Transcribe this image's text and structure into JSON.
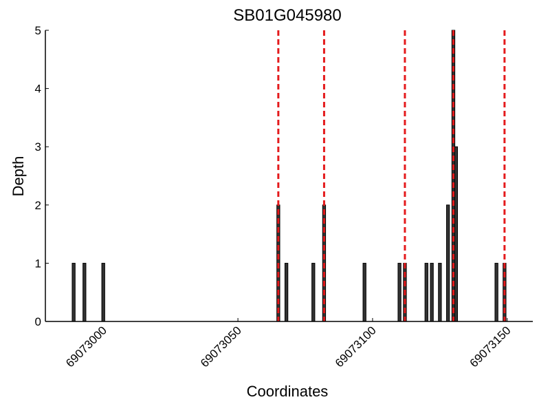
{
  "chart_data": {
    "type": "bar",
    "title": "SB01G045980",
    "xlabel": "Coordinates",
    "ylabel": "Depth",
    "x": [
      69072989,
      69072993,
      69073000,
      69073065,
      69073068,
      69073078,
      69073082,
      69073097,
      69073110,
      69073112,
      69073120,
      69073122,
      69073125,
      69073128,
      69073130,
      69073131,
      69073146,
      69073149
    ],
    "values": [
      1,
      1,
      1,
      2,
      1,
      1,
      2,
      1,
      1,
      1,
      1,
      1,
      1,
      2,
      5,
      3,
      1,
      1
    ],
    "color": "#333333",
    "markers": [
      69073065,
      69073082,
      69073112,
      69073130,
      69073149
    ],
    "marker_color": "#e41a1c",
    "xlim": [
      69072978.5,
      69073159.5
    ],
    "xticks": [
      69073000,
      69073050,
      69073100,
      69073150
    ],
    "ylim": [
      0,
      5
    ],
    "yticks": [
      0,
      1,
      2,
      3,
      4,
      5
    ]
  }
}
